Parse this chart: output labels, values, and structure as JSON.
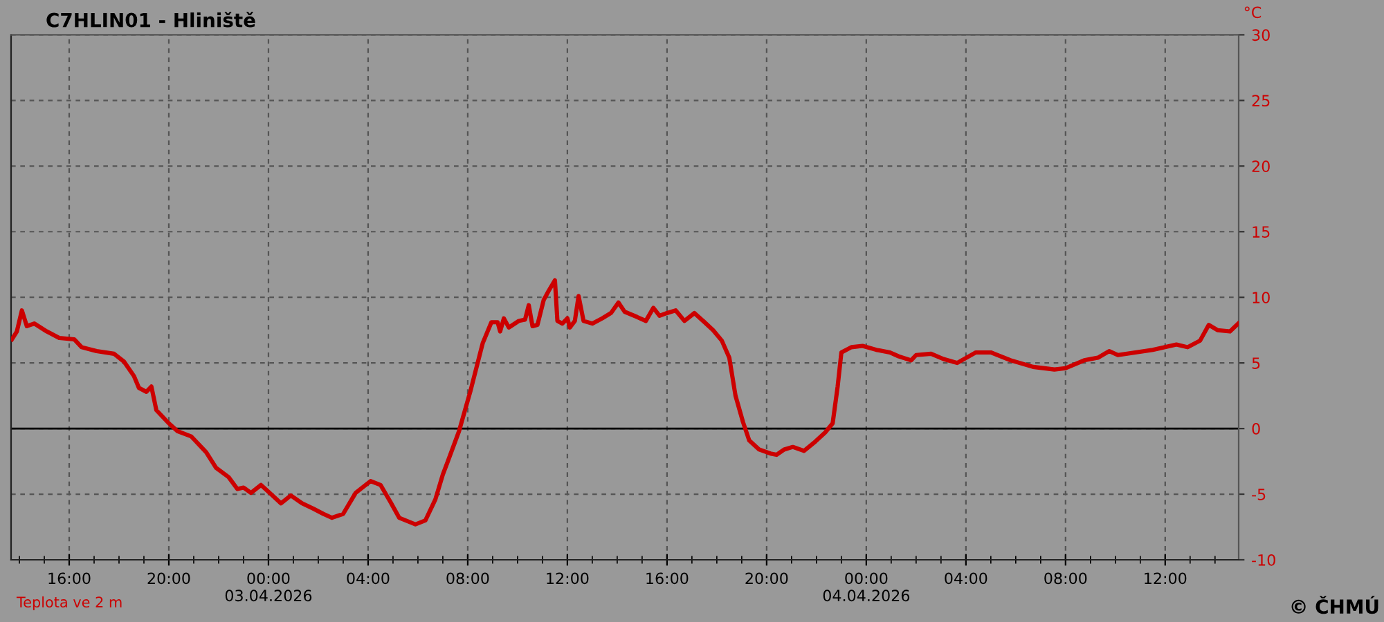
{
  "chart_data": {
    "type": "line",
    "title": "C7HLIN01 - Hliniště",
    "ylabel": "°C",
    "annotations": [
      "© ČHMÚ"
    ],
    "series": [
      {
        "name": "Teplota ve 2 m",
        "color": "#cc0000",
        "x": [
          "2026-04-02T13:42",
          "2026-04-02T13:54",
          "2026-04-02T14:06",
          "2026-04-02T14:18",
          "2026-04-02T14:36",
          "2026-04-02T15:06",
          "2026-04-02T15:36",
          "2026-04-02T16:12",
          "2026-04-02T16:30",
          "2026-04-02T17:06",
          "2026-04-02T17:48",
          "2026-04-02T18:12",
          "2026-04-02T18:36",
          "2026-04-02T18:48",
          "2026-04-02T19:06",
          "2026-04-02T19:18",
          "2026-04-02T19:30",
          "2026-04-02T20:00",
          "2026-04-02T20:21",
          "2026-04-02T20:54",
          "2026-04-02T21:30",
          "2026-04-02T21:54",
          "2026-04-02T22:24",
          "2026-04-02T22:45",
          "2026-04-02T23:00",
          "2026-04-02T23:18",
          "2026-04-02T23:42",
          "2026-04-03T00:03",
          "2026-04-03T00:30",
          "2026-04-03T00:54",
          "2026-04-03T01:21",
          "2026-04-03T01:48",
          "2026-04-03T02:12",
          "2026-04-03T02:33",
          "2026-04-03T03:00",
          "2026-04-03T03:30",
          "2026-04-03T04:06",
          "2026-04-03T04:30",
          "2026-04-03T04:54",
          "2026-04-03T05:15",
          "2026-04-03T05:54",
          "2026-04-03T06:18",
          "2026-04-03T06:42",
          "2026-04-03T07:00",
          "2026-04-03T07:12",
          "2026-04-03T07:39",
          "2026-04-03T08:06",
          "2026-04-03T08:36",
          "2026-04-03T08:57",
          "2026-04-03T09:12",
          "2026-04-03T09:18",
          "2026-04-03T09:27",
          "2026-04-03T09:39",
          "2026-04-03T10:03",
          "2026-04-03T10:18",
          "2026-04-03T10:27",
          "2026-04-03T10:36",
          "2026-04-03T10:48",
          "2026-04-03T11:03",
          "2026-04-03T11:15",
          "2026-04-03T11:30",
          "2026-04-03T11:36",
          "2026-04-03T11:48",
          "2026-04-03T12:00",
          "2026-04-03T12:06",
          "2026-04-03T12:18",
          "2026-04-03T12:27",
          "2026-04-03T12:39",
          "2026-04-03T13:00",
          "2026-04-03T13:24",
          "2026-04-03T13:45",
          "2026-04-03T14:03",
          "2026-04-03T14:18",
          "2026-04-03T14:48",
          "2026-04-03T15:09",
          "2026-04-03T15:27",
          "2026-04-03T15:42",
          "2026-04-03T16:00",
          "2026-04-03T16:21",
          "2026-04-03T16:42",
          "2026-04-03T17:06",
          "2026-04-03T17:27",
          "2026-04-03T17:51",
          "2026-04-03T18:12",
          "2026-04-03T18:30",
          "2026-04-03T18:45",
          "2026-04-03T19:03",
          "2026-04-03T19:18",
          "2026-04-03T19:42",
          "2026-04-03T20:09",
          "2026-04-03T20:24",
          "2026-04-03T20:42",
          "2026-04-03T21:03",
          "2026-04-03T21:30",
          "2026-04-03T21:57",
          "2026-04-03T22:21",
          "2026-04-03T22:39",
          "2026-04-03T22:51",
          "2026-04-03T23:00",
          "2026-04-03T23:24",
          "2026-04-03T23:51",
          "2026-04-04T00:24",
          "2026-04-04T00:57",
          "2026-04-04T01:18",
          "2026-04-04T01:48",
          "2026-04-04T02:00",
          "2026-04-04T02:36",
          "2026-04-04T03:06",
          "2026-04-04T03:39",
          "2026-04-04T04:24",
          "2026-04-04T05:00",
          "2026-04-04T05:48",
          "2026-04-04T06:42",
          "2026-04-04T07:33",
          "2026-04-04T08:00",
          "2026-04-04T08:45",
          "2026-04-04T09:18",
          "2026-04-04T09:45",
          "2026-04-04T10:06",
          "2026-04-04T10:48",
          "2026-04-04T11:30",
          "2026-04-04T12:27",
          "2026-04-04T12:54",
          "2026-04-04T13:24",
          "2026-04-04T13:45",
          "2026-04-04T14:06",
          "2026-04-04T14:36",
          "2026-04-04T14:56"
        ],
        "values": [
          6.8,
          7.4,
          9.0,
          7.8,
          8.0,
          7.4,
          6.9,
          6.8,
          6.2,
          5.9,
          5.7,
          5.1,
          4.0,
          3.1,
          2.8,
          3.2,
          1.4,
          0.4,
          -0.2,
          -0.6,
          -1.8,
          -3.0,
          -3.7,
          -4.6,
          -4.5,
          -4.9,
          -4.3,
          -4.9,
          -5.7,
          -5.1,
          -5.7,
          -6.1,
          -6.5,
          -6.8,
          -6.5,
          -4.9,
          -4.0,
          -4.3,
          -5.6,
          -6.8,
          -7.3,
          -7.0,
          -5.4,
          -3.5,
          -2.5,
          -0.2,
          2.8,
          6.5,
          8.1,
          8.1,
          7.4,
          8.4,
          7.7,
          8.2,
          8.3,
          9.4,
          7.8,
          7.9,
          9.8,
          10.5,
          11.3,
          8.2,
          8.0,
          8.4,
          7.7,
          8.2,
          10.1,
          8.2,
          8.0,
          8.4,
          8.8,
          9.6,
          8.9,
          8.5,
          8.2,
          9.2,
          8.6,
          8.8,
          9.0,
          8.2,
          8.8,
          8.2,
          7.5,
          6.7,
          5.4,
          2.5,
          0.5,
          -0.9,
          -1.6,
          -1.9,
          -2.0,
          -1.6,
          -1.4,
          -1.7,
          -1.0,
          -0.3,
          0.4,
          3.2,
          5.8,
          6.2,
          6.3,
          6.0,
          5.8,
          5.5,
          5.2,
          5.6,
          5.7,
          5.3,
          5.0,
          5.8,
          5.8,
          5.2,
          4.7,
          4.5,
          4.6,
          5.2,
          5.4,
          5.9,
          5.6,
          5.8,
          6.0,
          6.4,
          6.2,
          6.7,
          7.9,
          7.5,
          7.4,
          8.0
        ]
      }
    ],
    "xlim": [
      "2026-04-02T13:40",
      "2026-04-04T14:57"
    ],
    "xticks": [
      {
        "value": "2026-04-02T16:00",
        "label": "16:00"
      },
      {
        "value": "2026-04-02T20:00",
        "label": "20:00"
      },
      {
        "value": "2026-04-03T00:00",
        "label": "00:00\n03.04.2026"
      },
      {
        "value": "2026-04-03T04:00",
        "label": "04:00"
      },
      {
        "value": "2026-04-03T08:00",
        "label": "08:00"
      },
      {
        "value": "2026-04-03T12:00",
        "label": "12:00"
      },
      {
        "value": "2026-04-03T16:00",
        "label": "16:00"
      },
      {
        "value": "2026-04-03T20:00",
        "label": "20:00"
      },
      {
        "value": "2026-04-04T00:00",
        "label": "00:00\n04.04.2026"
      },
      {
        "value": "2026-04-04T04:00",
        "label": "04:00"
      },
      {
        "value": "2026-04-04T08:00",
        "label": "08:00"
      },
      {
        "value": "2026-04-04T12:00",
        "label": "12:00"
      },
      {
        "value": "2026-04-02T14:00",
        "label": null
      },
      {
        "value": "2026-04-02T15:00",
        "label": null
      },
      {
        "value": "2026-04-02T17:00",
        "label": null
      },
      {
        "value": "2026-04-02T18:00",
        "label": null
      },
      {
        "value": "2026-04-02T19:00",
        "label": null
      },
      {
        "value": "2026-04-02T21:00",
        "label": null
      },
      {
        "value": "2026-04-02T22:00",
        "label": null
      },
      {
        "value": "2026-04-02T23:00",
        "label": null
      },
      {
        "value": "2026-04-03T01:00",
        "label": null
      },
      {
        "value": "2026-04-03T02:00",
        "label": null
      },
      {
        "value": "2026-04-03T03:00",
        "label": null
      },
      {
        "value": "2026-04-03T05:00",
        "label": null
      },
      {
        "value": "2026-04-03T06:00",
        "label": null
      },
      {
        "value": "2026-04-03T07:00",
        "label": null
      },
      {
        "value": "2026-04-03T09:00",
        "label": null
      },
      {
        "value": "2026-04-03T10:00",
        "label": null
      },
      {
        "value": "2026-04-03T11:00",
        "label": null
      },
      {
        "value": "2026-04-03T13:00",
        "label": null
      },
      {
        "value": "2026-04-03T14:00",
        "label": null
      },
      {
        "value": "2026-04-03T15:00",
        "label": null
      },
      {
        "value": "2026-04-03T17:00",
        "label": null
      },
      {
        "value": "2026-04-03T18:00",
        "label": null
      },
      {
        "value": "2026-04-03T19:00",
        "label": null
      },
      {
        "value": "2026-04-03T21:00",
        "label": null
      },
      {
        "value": "2026-04-03T22:00",
        "label": null
      },
      {
        "value": "2026-04-03T23:00",
        "label": null
      },
      {
        "value": "2026-04-04T01:00",
        "label": null
      },
      {
        "value": "2026-04-04T02:00",
        "label": null
      },
      {
        "value": "2026-04-04T03:00",
        "label": null
      },
      {
        "value": "2026-04-04T05:00",
        "label": null
      },
      {
        "value": "2026-04-04T06:00",
        "label": null
      },
      {
        "value": "2026-04-04T07:00",
        "label": null
      },
      {
        "value": "2026-04-04T09:00",
        "label": null
      },
      {
        "value": "2026-04-04T10:00",
        "label": null
      },
      {
        "value": "2026-04-04T11:00",
        "label": null
      },
      {
        "value": "2026-04-04T13:00",
        "label": null
      },
      {
        "value": "2026-04-04T14:00",
        "label": null
      }
    ],
    "ylim": [
      -10,
      30
    ],
    "yticks": [
      -10,
      -5,
      0,
      5,
      10,
      15,
      20,
      25,
      30
    ],
    "ref_lines": [
      {
        "axis": "y",
        "value": 0,
        "color": "#000000",
        "line_style": "solid"
      }
    ],
    "grid": true,
    "legend": "bottom left",
    "marker": "none",
    "line_style": "solid"
  }
}
